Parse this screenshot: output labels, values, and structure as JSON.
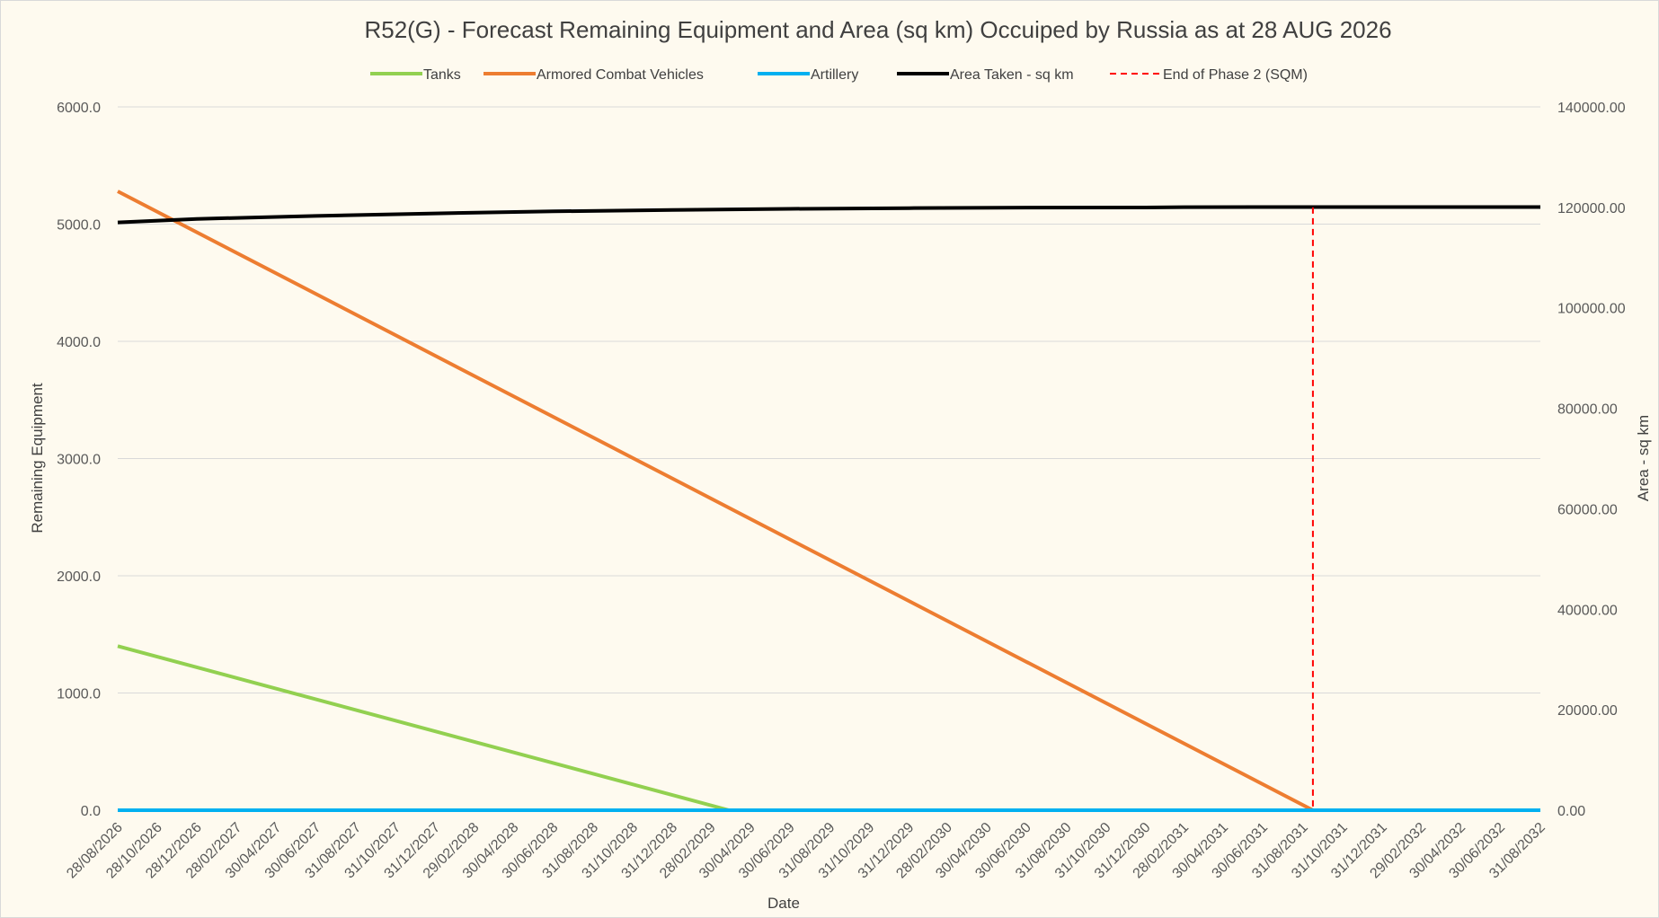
{
  "chart_data": {
    "type": "line",
    "title": "R52(G) - Forecast Remaining Equipment and Area (sq km) Occuiped by Russia as at 28 AUG 2026",
    "xlabel": "Date",
    "ylabel": "Remaining Equipment",
    "y2label": "Area - sq km",
    "ylim": [
      0,
      6000
    ],
    "y2lim": [
      0,
      140000
    ],
    "yticks": [
      "0.0",
      "1000.0",
      "2000.0",
      "3000.0",
      "4000.0",
      "5000.0",
      "6000.0"
    ],
    "y2ticks": [
      "0.00",
      "20000.00",
      "40000.00",
      "60000.00",
      "80000.00",
      "100000.00",
      "120000.00",
      "140000.00"
    ],
    "grid": true,
    "legend_position": "top",
    "categories": [
      "28/08/2026",
      "28/10/2026",
      "28/12/2026",
      "28/02/2027",
      "30/04/2027",
      "30/06/2027",
      "31/08/2027",
      "31/10/2027",
      "31/12/2027",
      "29/02/2028",
      "30/04/2028",
      "30/06/2028",
      "31/08/2028",
      "31/10/2028",
      "31/12/2028",
      "28/02/2029",
      "30/04/2029",
      "30/06/2029",
      "31/08/2029",
      "31/10/2029",
      "31/12/2029",
      "28/02/2030",
      "30/04/2030",
      "30/06/2030",
      "31/08/2030",
      "31/10/2030",
      "31/12/2030",
      "28/02/2031",
      "30/04/2031",
      "30/06/2031",
      "31/08/2031",
      "31/10/2031",
      "31/12/2031",
      "29/02/2032",
      "30/04/2032",
      "30/06/2032",
      "31/08/2032"
    ],
    "series": [
      {
        "name": "Tanks",
        "axis": "left",
        "color": "#92d050",
        "style": "solid",
        "x": [
          "28/08/2026",
          "28/03/2029",
          "31/08/2032"
        ],
        "values": [
          1400,
          0,
          0
        ]
      },
      {
        "name": "Armored Combat Vehicles",
        "axis": "left",
        "color": "#ed7d31",
        "style": "solid",
        "x": [
          "28/08/2026",
          "15/09/2031",
          "31/08/2032"
        ],
        "values": [
          5280,
          0,
          0
        ]
      },
      {
        "name": "Artillery",
        "axis": "left",
        "color": "#00b0f0",
        "style": "solid",
        "x": [
          "28/08/2026",
          "31/08/2032"
        ],
        "values": [
          0,
          0
        ]
      },
      {
        "name": "Area Taken - sq km",
        "axis": "right",
        "color": "#000000",
        "style": "solid",
        "x": [
          "28/08/2026",
          "28/12/2026",
          "30/06/2027",
          "31/12/2027",
          "30/06/2028",
          "31/12/2028",
          "30/06/2029",
          "31/12/2029",
          "30/06/2030",
          "31/12/2030",
          "28/02/2031",
          "30/06/2031",
          "31/12/2031",
          "31/08/2032"
        ],
        "values": [
          117000,
          117700,
          118300,
          118800,
          119200,
          119500,
          119700,
          119850,
          119950,
          119980,
          120050,
          120060,
          120060,
          120060
        ]
      },
      {
        "name": "End of Phase 2 (SQM)",
        "axis": "right",
        "color": "#ff0000",
        "style": "dashed",
        "x": [
          "15/09/2031",
          "15/09/2031",
          "31/08/2032"
        ],
        "values": [
          120000,
          0,
          0
        ]
      }
    ]
  }
}
